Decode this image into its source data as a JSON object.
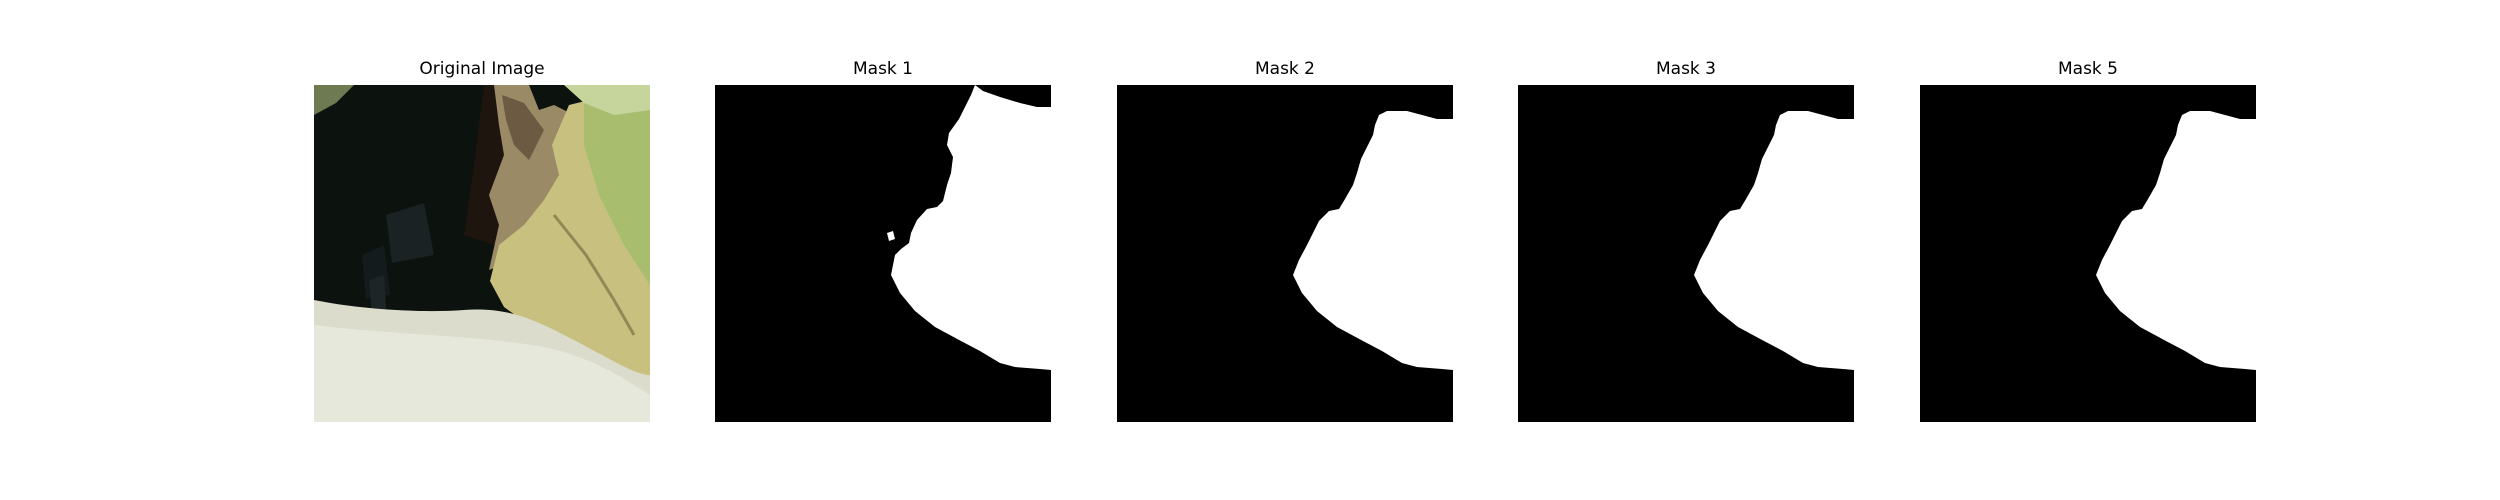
{
  "panels": [
    {
      "title": "Original Image",
      "kind": "photo"
    },
    {
      "title": "Mask 1",
      "kind": "mask"
    },
    {
      "title": "Mask 2",
      "kind": "mask"
    },
    {
      "title": "Mask 3",
      "kind": "mask"
    },
    {
      "title": "Mask 5",
      "kind": "mask"
    }
  ],
  "colors": {
    "background": "#ffffff",
    "mask_background": "#000000",
    "mask_foreground": "#ffffff",
    "photo_dark": "#0c120d",
    "photo_floor": "#dcdccd",
    "photo_leaf": "#c7c07f",
    "photo_leaf_green": "#a9bd6f"
  }
}
